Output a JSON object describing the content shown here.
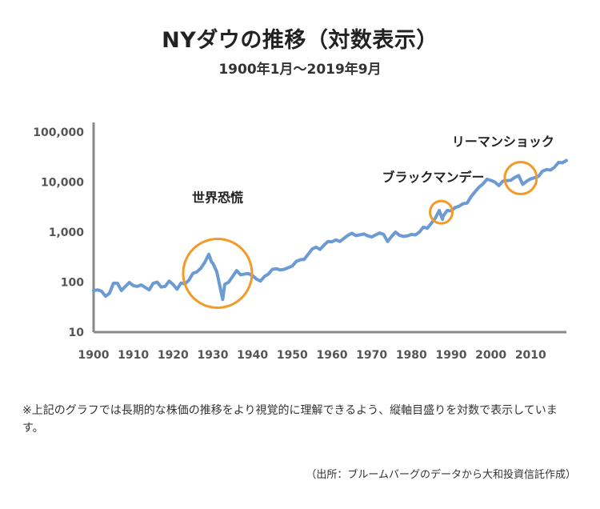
{
  "header": {
    "title": "NYダウの推移（対数表示）",
    "subtitle": "1900年1月～2019年9月"
  },
  "footer": {
    "note": "※上記のグラフでは長期的な株価の推移をより視覚的に理解できるよう、縦軸目盛りを対数で表示しています。",
    "source": "（出所：ブルームバーグのデータから大和投資信託作成）"
  },
  "colors": {
    "line": "#6b9bd2",
    "circle": "#f39a26",
    "axis": "#888888"
  },
  "chart_data": {
    "type": "line",
    "title": "NYダウの推移（対数表示）",
    "subtitle": "1900年1月～2019年9月",
    "yscale": "log",
    "ylim": [
      10,
      100000
    ],
    "xlim": [
      1900,
      2019
    ],
    "grid": false,
    "y_ticks": [
      10,
      100,
      1000,
      10000,
      100000
    ],
    "y_tick_labels": [
      "10",
      "100",
      "1,000",
      "10,000",
      "100,000"
    ],
    "x_ticks": [
      1900,
      1910,
      1920,
      1930,
      1940,
      1950,
      1960,
      1970,
      1980,
      1990,
      2000,
      2010
    ],
    "x_tick_labels": [
      "1900",
      "1910",
      "1920",
      "1930",
      "1940",
      "1950",
      "1960",
      "1970",
      "1980",
      "1990",
      "2000",
      "2010"
    ],
    "series": [
      {
        "x": [
          1900,
          1901,
          1902,
          1903,
          1904,
          1905,
          1906,
          1907,
          1908,
          1909,
          1910,
          1911,
          1912,
          1913,
          1914,
          1915,
          1916,
          1917,
          1918,
          1919,
          1920,
          1921,
          1922,
          1923,
          1924,
          1925,
          1926,
          1927,
          1928,
          1929,
          1929.7,
          1930,
          1931,
          1932.5,
          1933,
          1934,
          1935,
          1936,
          1937,
          1938,
          1939,
          1940,
          1941,
          1942,
          1943,
          1944,
          1945,
          1946,
          1947,
          1948,
          1949,
          1950,
          1951,
          1952,
          1953,
          1954,
          1955,
          1956,
          1957,
          1958,
          1959,
          1960,
          1961,
          1962,
          1963,
          1964,
          1965,
          1966,
          1967,
          1968,
          1969,
          1970,
          1971,
          1972,
          1973,
          1974,
          1975,
          1976,
          1977,
          1978,
          1979,
          1980,
          1981,
          1982,
          1983,
          1984,
          1985,
          1986,
          1987,
          1987.8,
          1988,
          1989,
          1990,
          1991,
          1992,
          1993,
          1994,
          1995,
          1996,
          1997,
          1998,
          1999,
          2000,
          2001,
          2002,
          2003,
          2004,
          2005,
          2006,
          2007,
          2008,
          2009,
          2010,
          2011,
          2012,
          2013,
          2014,
          2015,
          2016,
          2017,
          2018,
          2019
        ],
        "values": [
          68,
          70,
          66,
          52,
          60,
          95,
          95,
          68,
          82,
          98,
          85,
          82,
          88,
          78,
          70,
          95,
          100,
          80,
          82,
          105,
          90,
          72,
          96,
          92,
          110,
          150,
          160,
          190,
          250,
          360,
          250,
          240,
          160,
          45,
          90,
          100,
          130,
          170,
          140,
          145,
          148,
          135,
          115,
          105,
          130,
          145,
          180,
          185,
          175,
          180,
          195,
          210,
          260,
          280,
          285,
          360,
          460,
          500,
          450,
          550,
          650,
          640,
          700,
          650,
          750,
          860,
          950,
          850,
          880,
          920,
          840,
          800,
          880,
          960,
          900,
          650,
          820,
          1000,
          860,
          820,
          840,
          900,
          880,
          1000,
          1250,
          1200,
          1500,
          1900,
          2700,
          1800,
          2100,
          2700,
          2650,
          3100,
          3300,
          3700,
          3800,
          5100,
          6400,
          7900,
          9200,
          11400,
          10800,
          10000,
          8500,
          10400,
          10700,
          10900,
          12400,
          13500,
          9000,
          10400,
          11600,
          12200,
          13100,
          16500,
          17800,
          17400,
          19800,
          24700,
          24300,
          27000
        ]
      }
    ],
    "annotations": [
      {
        "text": "世界恐慌",
        "x": 1931.2,
        "y": 150
      },
      {
        "text": "ブラックマンデー",
        "x": 1987.5,
        "y": 2500
      },
      {
        "text": "リーマンショック",
        "x": 2007.5,
        "y": 12000
      }
    ]
  }
}
